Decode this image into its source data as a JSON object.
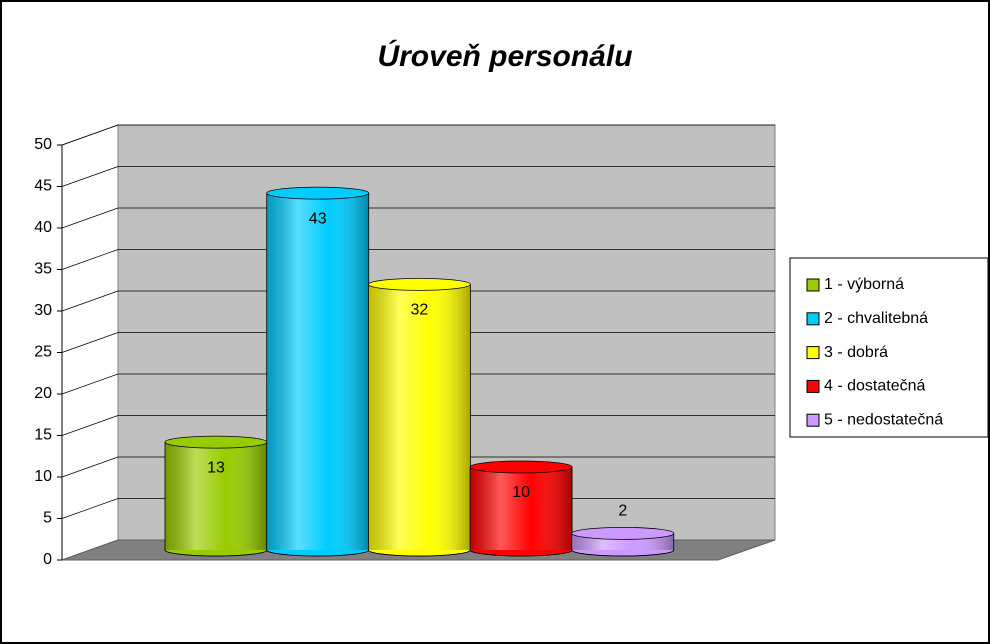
{
  "chart_data": {
    "type": "bar3d",
    "title": "Úroveň personálu",
    "categories": [
      "1 - výborná",
      "2 - chvalitebná",
      "3 - dobrá",
      "4 - dostatečná",
      "5 - nedostatečná"
    ],
    "values": [
      13,
      43,
      32,
      10,
      2
    ],
    "colors": [
      "#99cc00",
      "#00ccff",
      "#ffff00",
      "#ff0000",
      "#cc99ff"
    ],
    "ylim": [
      0,
      50
    ],
    "yticks": [
      0,
      5,
      10,
      15,
      20,
      25,
      30,
      35,
      40,
      45,
      50
    ],
    "grid": true,
    "legend": "right"
  }
}
